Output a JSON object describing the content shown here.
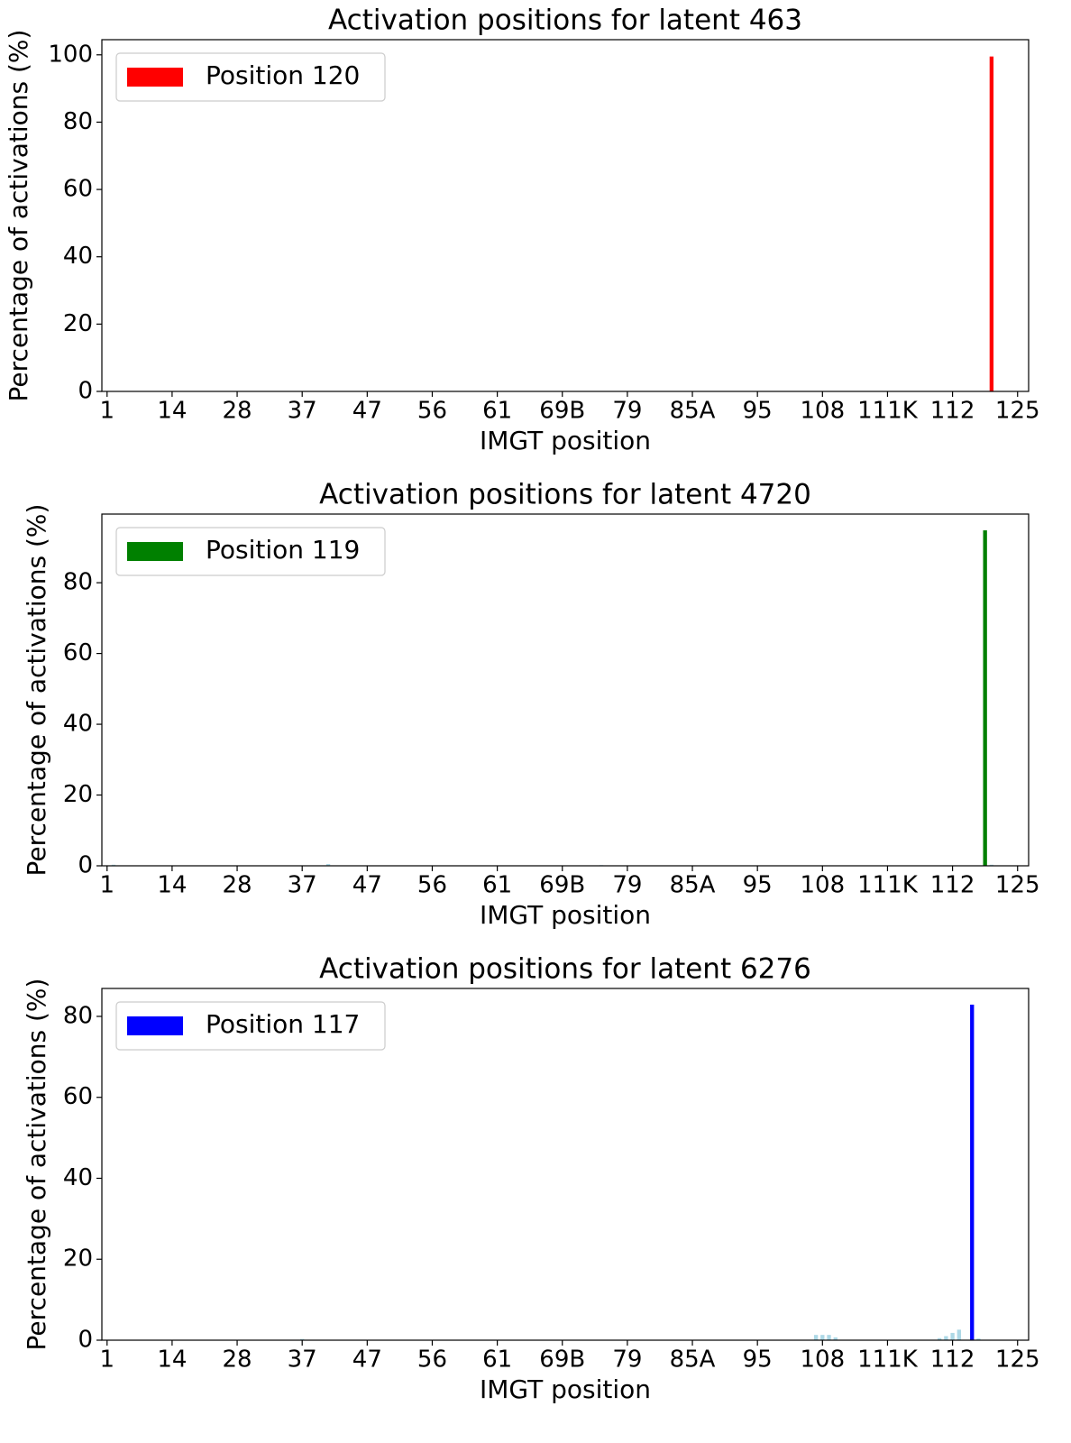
{
  "chart_data": [
    {
      "type": "bar",
      "title": "Activation positions for latent 463",
      "xlabel": "IMGT position",
      "ylabel": "Percentage of activations (%)",
      "xlim": [
        -0.8,
        141.7
      ],
      "ylim": [
        0,
        104.5
      ],
      "yticks": [
        0,
        20,
        40,
        60,
        80,
        100
      ],
      "xticks": [
        {
          "value": 0,
          "label": "1"
        },
        {
          "value": 10,
          "label": "14"
        },
        {
          "value": 20,
          "label": "28"
        },
        {
          "value": 30,
          "label": "37"
        },
        {
          "value": 40,
          "label": "47"
        },
        {
          "value": 50,
          "label": "56"
        },
        {
          "value": 60,
          "label": "61"
        },
        {
          "value": 70,
          "label": "69B"
        },
        {
          "value": 80,
          "label": "79"
        },
        {
          "value": 90,
          "label": "85A"
        },
        {
          "value": 100,
          "label": "95"
        },
        {
          "value": 110,
          "label": "108"
        },
        {
          "value": 120,
          "label": "111K"
        },
        {
          "value": 130,
          "label": "112"
        },
        {
          "value": 140,
          "label": "125"
        }
      ],
      "legend": "upper left",
      "series": [
        {
          "name": "Position 120",
          "color": "#ff0000",
          "x": [
            136
          ],
          "values": [
            99.5
          ]
        }
      ]
    },
    {
      "type": "bar",
      "title": "Activation positions for latent 4720",
      "xlabel": "IMGT position",
      "ylabel": "Percentage of activations (%)",
      "xlim": [
        -0.8,
        141.7
      ],
      "ylim": [
        0,
        99.4
      ],
      "yticks": [
        0,
        20,
        40,
        60,
        80
      ],
      "xticks": [
        {
          "value": 0,
          "label": "1"
        },
        {
          "value": 10,
          "label": "14"
        },
        {
          "value": 20,
          "label": "28"
        },
        {
          "value": 30,
          "label": "37"
        },
        {
          "value": 40,
          "label": "47"
        },
        {
          "value": 50,
          "label": "56"
        },
        {
          "value": 60,
          "label": "61"
        },
        {
          "value": 70,
          "label": "69B"
        },
        {
          "value": 80,
          "label": "79"
        },
        {
          "value": 90,
          "label": "85A"
        },
        {
          "value": 100,
          "label": "95"
        },
        {
          "value": 110,
          "label": "108"
        },
        {
          "value": 120,
          "label": "111K"
        },
        {
          "value": 130,
          "label": "112"
        },
        {
          "value": 140,
          "label": "125"
        }
      ],
      "legend": "upper left",
      "series": [
        {
          "name": "Position 119",
          "color": "#008000",
          "x": [
            135
          ],
          "values": [
            94.8
          ]
        },
        {
          "color": "#add8e6",
          "x": [
            1,
            34,
            76,
            136
          ],
          "values": [
            0.3,
            0.5,
            0.2,
            0.3
          ]
        }
      ]
    },
    {
      "type": "bar",
      "title": "Activation positions for latent 6276",
      "xlabel": "IMGT position",
      "ylabel": "Percentage of activations (%)",
      "xlim": [
        -0.8,
        141.7
      ],
      "ylim": [
        0,
        86.9
      ],
      "yticks": [
        0,
        20,
        40,
        60,
        80
      ],
      "xticks": [
        {
          "value": 0,
          "label": "1"
        },
        {
          "value": 10,
          "label": "14"
        },
        {
          "value": 20,
          "label": "28"
        },
        {
          "value": 30,
          "label": "37"
        },
        {
          "value": 40,
          "label": "47"
        },
        {
          "value": 50,
          "label": "56"
        },
        {
          "value": 60,
          "label": "61"
        },
        {
          "value": 70,
          "label": "69B"
        },
        {
          "value": 80,
          "label": "79"
        },
        {
          "value": 90,
          "label": "85A"
        },
        {
          "value": 100,
          "label": "95"
        },
        {
          "value": 110,
          "label": "108"
        },
        {
          "value": 120,
          "label": "111K"
        },
        {
          "value": 130,
          "label": "112"
        },
        {
          "value": 140,
          "label": "125"
        }
      ],
      "legend": "upper left",
      "series": [
        {
          "name": "Position 117",
          "color": "#0000ff",
          "x": [
            133
          ],
          "values": [
            82.9
          ]
        },
        {
          "color": "#add8e6",
          "x": [
            30,
            109,
            110,
            111,
            112,
            128,
            129,
            130,
            131,
            134
          ],
          "values": [
            0.3,
            1.3,
            1.3,
            1.3,
            0.7,
            0.5,
            1.0,
            1.8,
            2.6,
            0.4
          ]
        }
      ]
    }
  ]
}
